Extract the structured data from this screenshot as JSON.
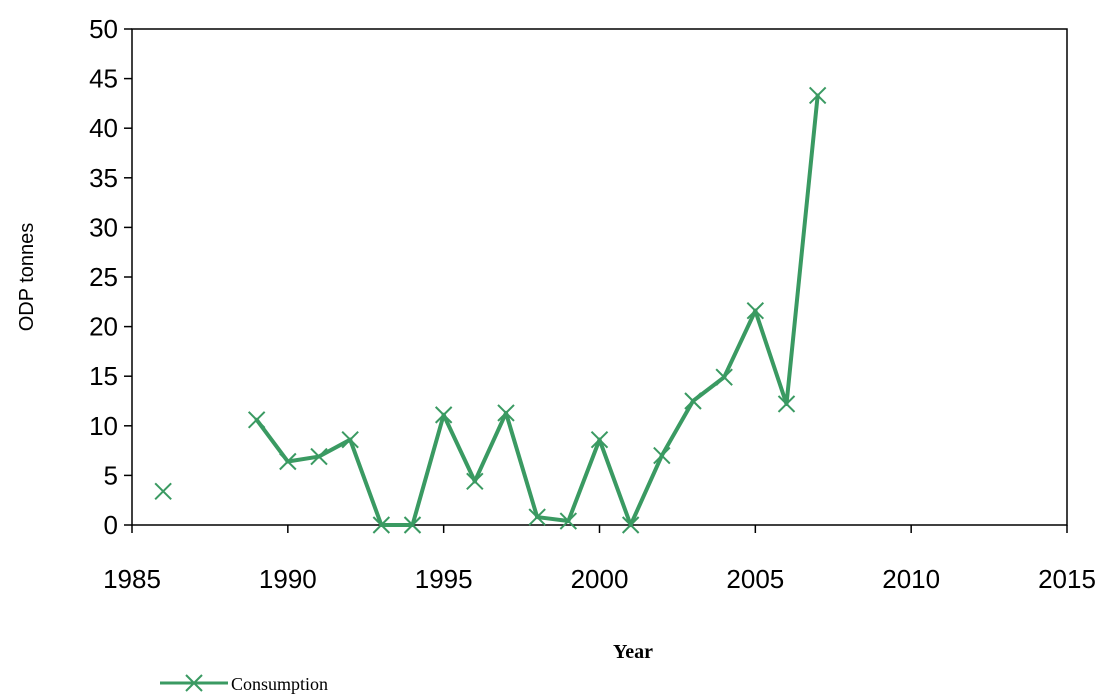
{
  "chart_data": {
    "type": "line",
    "title": "",
    "xlabel": "Year",
    "ylabel": "ODP tonnes",
    "xlim": [
      1985,
      2015
    ],
    "ylim": [
      0,
      50
    ],
    "x_ticks": [
      "1985",
      "1990",
      "1995",
      "2000",
      "2005",
      "2010",
      "2015"
    ],
    "y_ticks": [
      "0",
      "5",
      "10",
      "15",
      "20",
      "25",
      "30",
      "35",
      "40",
      "45",
      "50"
    ],
    "grid": false,
    "legend_position": "bottom-left",
    "series": [
      {
        "name": "Consumption",
        "color": "#3a9a62",
        "marker": "x",
        "points": [
          {
            "x": 1986,
            "y": 3.4
          },
          {
            "x": 1989,
            "y": 10.6
          },
          {
            "x": 1990,
            "y": 6.4
          },
          {
            "x": 1991,
            "y": 6.9
          },
          {
            "x": 1992,
            "y": 8.6
          },
          {
            "x": 1993,
            "y": 0.0
          },
          {
            "x": 1994,
            "y": 0.0
          },
          {
            "x": 1995,
            "y": 11.1
          },
          {
            "x": 1996,
            "y": 4.4
          },
          {
            "x": 1997,
            "y": 11.3
          },
          {
            "x": 1998,
            "y": 0.8
          },
          {
            "x": 1999,
            "y": 0.4
          },
          {
            "x": 2000,
            "y": 8.6
          },
          {
            "x": 2001,
            "y": 0.0
          },
          {
            "x": 2002,
            "y": 7.0
          },
          {
            "x": 2003,
            "y": 12.5
          },
          {
            "x": 2004,
            "y": 14.9
          },
          {
            "x": 2005,
            "y": 21.6
          },
          {
            "x": 2006,
            "y": 12.2
          },
          {
            "x": 2007,
            "y": 43.3
          }
        ]
      }
    ]
  }
}
